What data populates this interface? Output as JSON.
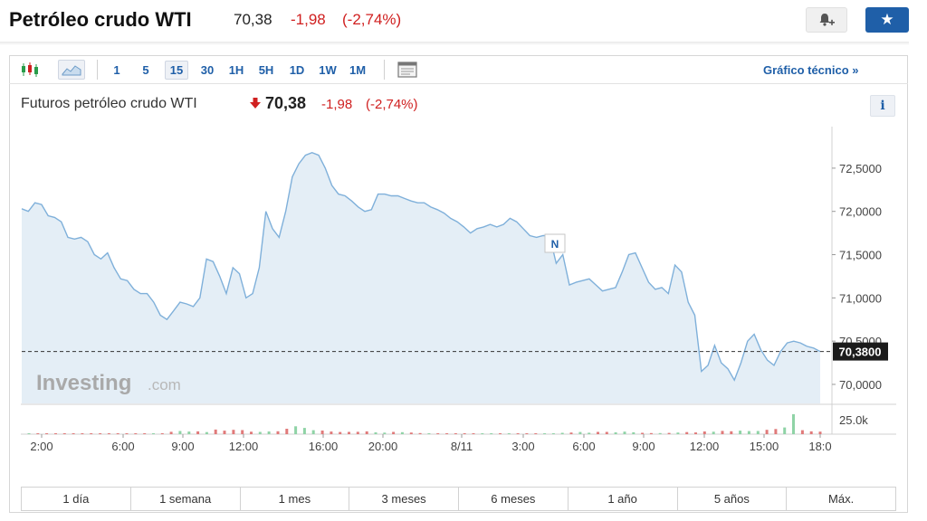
{
  "header": {
    "title": "Petróleo crudo WTI",
    "price": "70,38",
    "change": "-1,98",
    "change_pct": "(-2,74%)",
    "alert_icon": "bell-plus-icon",
    "star_icon": "star-icon",
    "accent_color": "#1f5fa8",
    "negative_color": "#d02020"
  },
  "toolbar": {
    "chart_type_icons": [
      "candlestick-icon",
      "area-chart-icon"
    ],
    "intervals": [
      "1",
      "5",
      "15",
      "30",
      "1H",
      "5H",
      "1D",
      "1W",
      "1M"
    ],
    "active_interval": "15",
    "settings_icon": "chart-settings-icon",
    "tech_chart_link": "Gráfico técnico »"
  },
  "subheader": {
    "name": "Futuros petróleo crudo WTI",
    "arrow_icon": "down-arrow-icon",
    "price": "70,38",
    "change": "-1,98",
    "change_pct": "(-2,74%)",
    "info_label": "i"
  },
  "watermark": {
    "brand": "Investing",
    "suffix": ".com"
  },
  "news_marker": "N",
  "chart_data": {
    "type": "area",
    "x_ticks": [
      "2:00",
      "6:00",
      "9:00",
      "12:00",
      "16:00",
      "20:00",
      "8/11",
      "3:00",
      "6:00",
      "9:00",
      "12:00",
      "15:00",
      "18:0"
    ],
    "y_ticks": [
      "72,5000",
      "72,0000",
      "71,5000",
      "71,0000",
      "70,5000",
      "70,0000"
    ],
    "ylim": [
      69.78,
      72.98
    ],
    "y_tick_values": [
      72.5,
      72.0,
      71.5,
      71.0,
      70.5,
      70.0
    ],
    "current_value": 70.38,
    "current_label": "70,3800",
    "line_color": "#7fb0da",
    "fill_color": "#e4eef6",
    "series": [
      {
        "values": [
          72.03,
          72.0,
          72.1,
          72.08,
          71.95,
          71.93,
          71.88,
          71.7,
          71.68,
          71.7,
          71.65,
          71.5,
          71.45,
          71.52,
          71.35,
          71.22,
          71.2,
          71.1,
          71.05,
          71.05,
          70.95,
          70.8,
          70.75,
          70.85,
          70.95,
          70.93,
          70.9,
          71.0,
          71.45,
          71.42,
          71.25,
          71.05,
          71.35,
          71.28,
          71.0,
          71.05,
          71.35,
          72.0,
          71.8,
          71.7,
          72.0,
          72.4,
          72.55,
          72.65,
          72.68,
          72.65,
          72.5,
          72.3,
          72.2,
          72.18,
          72.12,
          72.05,
          72.0,
          72.02,
          72.2,
          72.2,
          72.18,
          72.18,
          72.15,
          72.12,
          72.1,
          72.1,
          72.05,
          72.02,
          71.98,
          71.92,
          71.88,
          71.82,
          71.75,
          71.8,
          71.82,
          71.85,
          71.82,
          71.85,
          71.92,
          71.88,
          71.8,
          71.72,
          71.7,
          71.72,
          71.72,
          71.4,
          71.5,
          71.15,
          71.18,
          71.2,
          71.22,
          71.15,
          71.08,
          71.1,
          71.12,
          71.3,
          71.5,
          71.52,
          71.35,
          71.18,
          71.1,
          71.12,
          71.05,
          71.38,
          71.3,
          70.95,
          70.8,
          70.15,
          70.22,
          70.45,
          70.25,
          70.18,
          70.05,
          70.25,
          70.5,
          70.58,
          70.4,
          70.28,
          70.22,
          70.38,
          70.48,
          70.5,
          70.48,
          70.44,
          70.42,
          70.38
        ]
      }
    ],
    "volume": {
      "axis_label": "25.0k",
      "max": 25000,
      "values": [
        300,
        200,
        200,
        300,
        300,
        300,
        300,
        500,
        400,
        500,
        500,
        700,
        900,
        600,
        900,
        1000,
        2800,
        3800,
        3200,
        3400,
        2500,
        5500,
        4200,
        5200,
        4900,
        2900,
        2700,
        3300,
        3500,
        6500,
        9500,
        7500,
        4800,
        4300,
        3100,
        2600,
        2700,
        2800,
        3400,
        2200,
        1900,
        2700,
        2400,
        2000,
        1300,
        900,
        900,
        900,
        600,
        600,
        500,
        500,
        500,
        400,
        400,
        400,
        300,
        300,
        300,
        300,
        1600,
        2000,
        2600,
        1700,
        2700,
        2700,
        2200,
        3000,
        2300,
        1600,
        1300,
        1300,
        1500,
        2000,
        2500,
        2100,
        3300,
        2900,
        3900,
        3500,
        4200,
        3700,
        3800,
        5200,
        6200,
        8000,
        24000,
        4800,
        3400,
        3000
      ]
    }
  },
  "time_ranges": [
    "1 día",
    "1 semana",
    "1 mes",
    "3 meses",
    "6 meses",
    "1 año",
    "5 años",
    "Máx."
  ]
}
